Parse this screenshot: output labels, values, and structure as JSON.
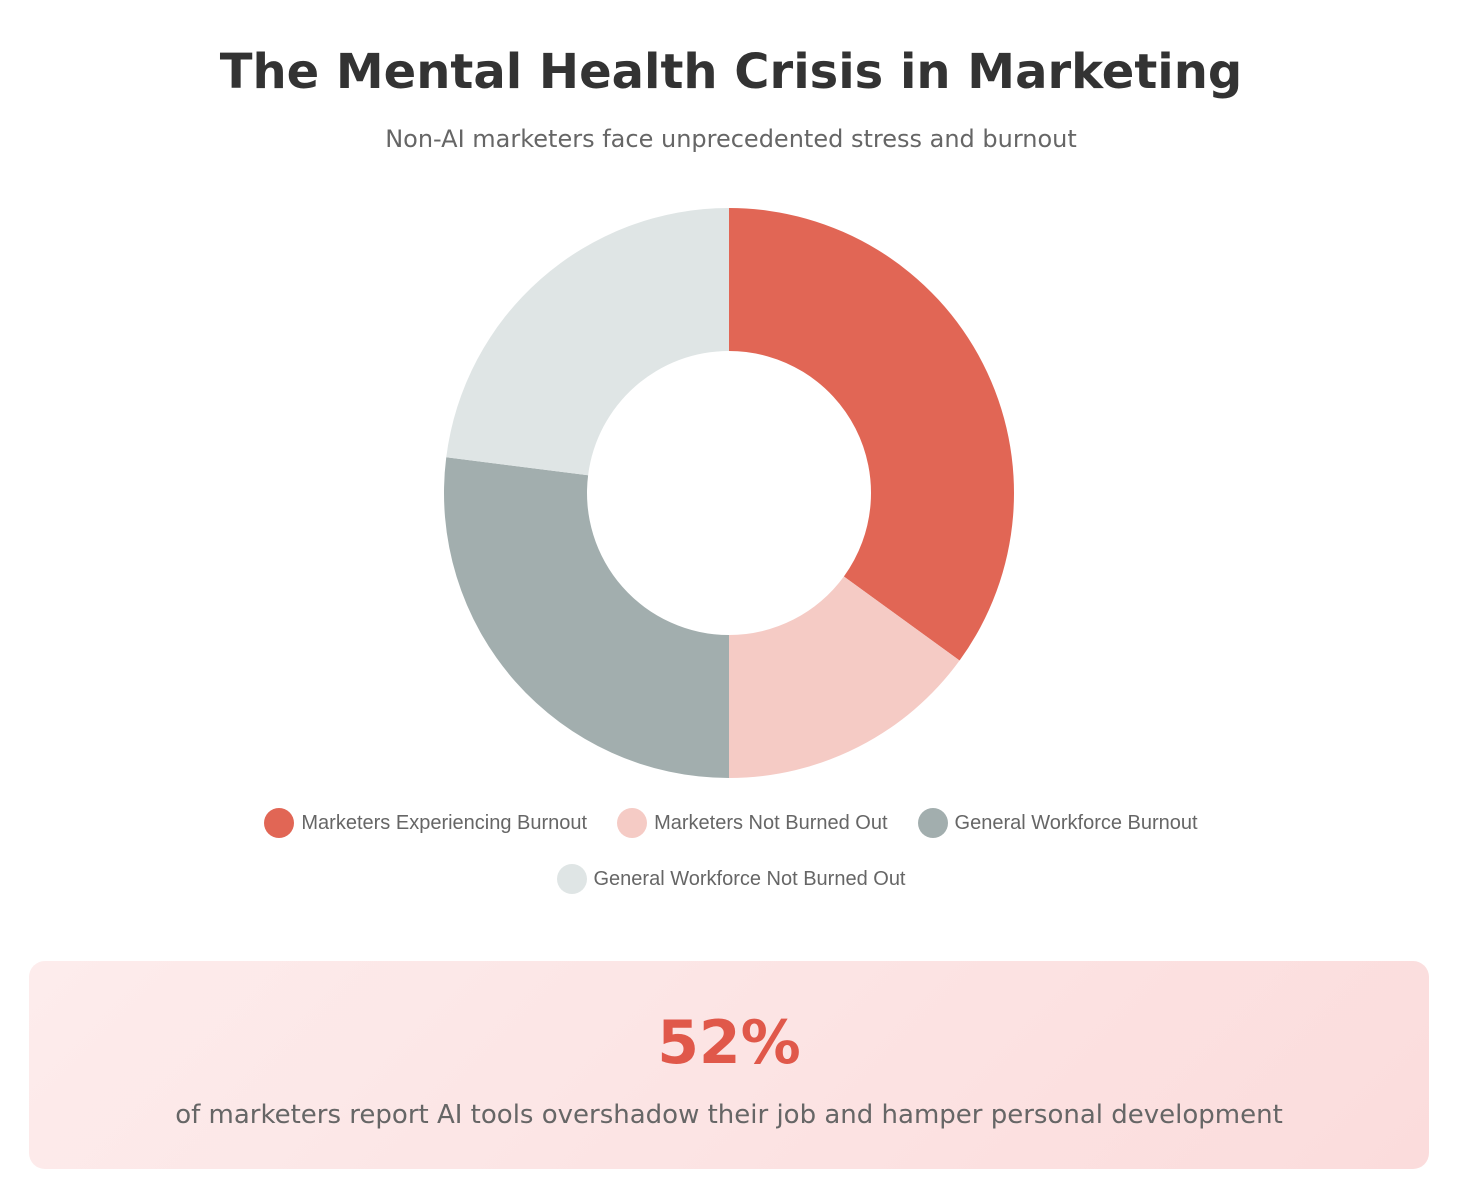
{
  "header": {
    "title": "The Mental Health Crisis in Marketing",
    "subtitle": "Non-AI marketers face unprecedented stress and burnout"
  },
  "chart_data": {
    "type": "pie",
    "variant": "doughnut",
    "title": "",
    "legend_position": "bottom",
    "labels": [
      "Marketers Experiencing Burnout",
      "Marketers Not Burned Out",
      "General Workforce Burnout",
      "General Workforce Not Burned Out"
    ],
    "values": [
      35,
      15,
      27,
      23
    ],
    "colors": [
      "#e16655",
      "#f5cbc5",
      "#a2aeae",
      "#dfe5e5"
    ]
  },
  "stat": {
    "value": "52%",
    "description": "of marketers report AI tools overshadow their job and hamper personal development"
  },
  "colors": {
    "accent": "#e0584a",
    "title_text": "#333333",
    "muted_text": "#666666"
  }
}
